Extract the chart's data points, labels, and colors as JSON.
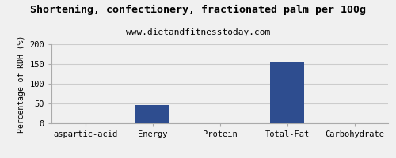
{
  "title": "Shortening, confectionery, fractionated palm per 100g",
  "subtitle": "www.dietandfitnesstoday.com",
  "ylabel": "Percentage of RDH (%)",
  "categories": [
    "aspartic-acid",
    "Energy",
    "Protein",
    "Total-Fat",
    "Carbohydrate"
  ],
  "values": [
    0,
    46,
    0,
    155,
    0
  ],
  "bar_color": "#2e4d8f",
  "ylim": [
    0,
    200
  ],
  "yticks": [
    0,
    50,
    100,
    150,
    200
  ],
  "background_color": "#f0f0f0",
  "title_fontsize": 9.5,
  "subtitle_fontsize": 8,
  "ylabel_fontsize": 7,
  "tick_fontsize": 7.5,
  "grid_color": "#cccccc"
}
